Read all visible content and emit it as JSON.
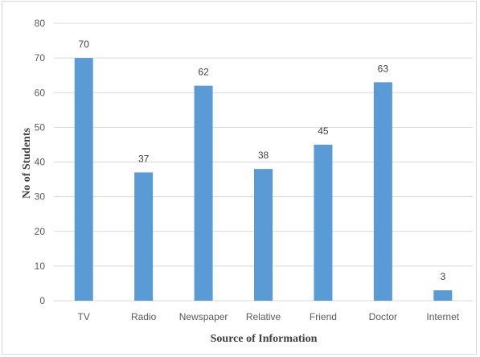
{
  "chart_data": {
    "type": "bar",
    "categories": [
      "TV",
      "Radio",
      "Newspaper",
      "Relative",
      "Friend",
      "Doctor",
      "Internet"
    ],
    "values": [
      70,
      37,
      62,
      38,
      45,
      63,
      3
    ],
    "title": "",
    "xlabel": "Source of Information",
    "ylabel": "No of Students",
    "ylim": [
      0,
      80
    ],
    "yticks": [
      0,
      10,
      20,
      30,
      40,
      50,
      60,
      70,
      80
    ],
    "grid": true,
    "legend": "none",
    "bar_color": "#5b9bd5"
  }
}
